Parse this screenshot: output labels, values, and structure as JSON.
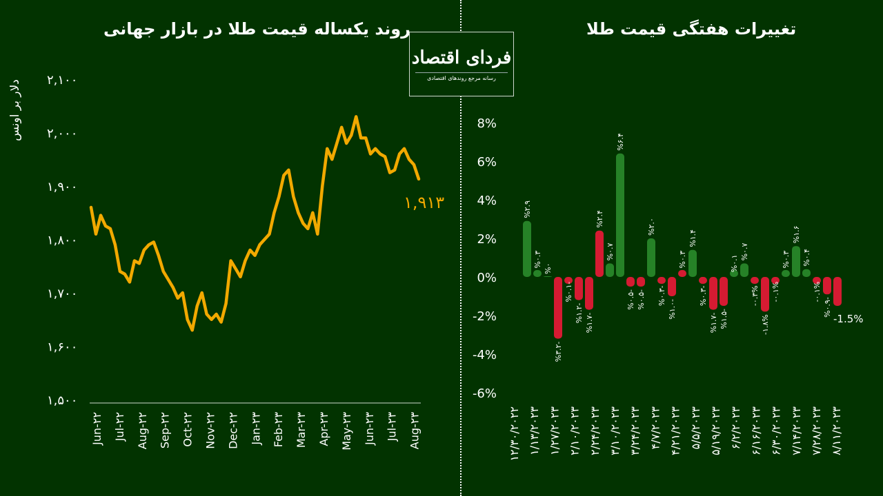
{
  "logo": {
    "name": "فردای اقتصاد",
    "tagline": "رسانه مرجع روندهای اقتصادی"
  },
  "colors": {
    "background": "#023300",
    "line": "#f2a900",
    "up": "#268227",
    "down": "#d51b32",
    "text": "#ffffff"
  },
  "chart_data": [
    {
      "type": "line",
      "title": "روند یکساله قیمت طلا در بازار جهانی",
      "ylabel": "دلار بر اونس",
      "ylim": [
        1500,
        2100
      ],
      "yticks": [
        2100,
        2000,
        1900,
        1800,
        1700,
        1600,
        1500
      ],
      "ytick_labels": [
        "۲,۱۰۰",
        "۲,۰۰۰",
        "۱,۹۰۰",
        "۱,۸۰۰",
        "۱,۷۰۰",
        "۱,۶۰۰",
        "۱,۵۰۰"
      ],
      "xtick_labels": [
        "Jun-۲۲",
        "Jul-۲۲",
        "Aug-۲۲",
        "Sep-۲۲",
        "Oct-۲۲",
        "Nov-۲۲",
        "Dec-۲۲",
        "Jan-۲۳",
        "Feb-۲۳",
        "Mar-۲۳",
        "Apr-۲۳",
        "May-۲۳",
        "Jun-۲۳",
        "Jul-۲۳",
        "Aug-۲۳"
      ],
      "values": [
        1860,
        1810,
        1845,
        1825,
        1820,
        1790,
        1740,
        1735,
        1720,
        1760,
        1755,
        1780,
        1790,
        1795,
        1770,
        1740,
        1725,
        1710,
        1690,
        1700,
        1650,
        1630,
        1675,
        1700,
        1660,
        1650,
        1660,
        1645,
        1680,
        1760,
        1745,
        1730,
        1760,
        1780,
        1770,
        1790,
        1800,
        1810,
        1850,
        1880,
        1920,
        1930,
        1880,
        1850,
        1830,
        1820,
        1850,
        1810,
        1900,
        1970,
        1950,
        1980,
        2010,
        1980,
        1995,
        2030,
        1990,
        1990,
        1960,
        1970,
        1960,
        1955,
        1925,
        1930,
        1960,
        1970,
        1950,
        1940,
        1913
      ],
      "last_label": "۱,۹۱۳"
    },
    {
      "type": "bar",
      "title": "تغییرات هفتگی قیمت طلا",
      "ylim": [
        -6,
        8
      ],
      "yticks": [
        8,
        6,
        4,
        2,
        0,
        -2,
        -4,
        -6
      ],
      "ytick_labels": [
        "8%",
        "6%",
        "4%",
        "2%",
        "0%",
        "-2%",
        "-4%",
        "-6%"
      ],
      "xtick_labels": [
        "۱۲/۳۰/۲۰۲۲",
        "۱/۱۳/۲۰۲۳",
        "۱/۲۷/۲۰۲۳",
        "۲/۱۰/۲۰۲۳",
        "۲/۲۴/۲۰۲۳",
        "۳/۱۰/۲۰۲۳",
        "۳/۲۴/۲۰۲۳",
        "۴/۷/۲۰۲۳",
        "۴/۲۱/۲۰۲۳",
        "۵/۵/۲۰۲۳",
        "۵/۱۹/۲۰۲۳",
        "۶/۲/۲۰۲۳",
        "۶/۱۶/۲۰۲۳",
        "۶/۳۰/۲۰۲۳",
        "۷/۱۴/۲۰۲۳",
        "۷/۲۸/۲۰۲۳",
        "۸/۱۱/۲۰۲۳"
      ],
      "values": [
        2.9,
        0.3,
        0,
        -3.2,
        -0.1,
        -1.2,
        -1.7,
        2.4,
        0.7,
        6.4,
        -0.5,
        -0.5,
        2.0,
        -0.3,
        -1.0,
        0.3,
        1.4,
        -0.3,
        -1.7,
        -1.5,
        0.1,
        0.7,
        -0.3,
        -1.8,
        -0.1,
        0.3,
        1.6,
        0.4,
        -0.1,
        -0.9,
        -1.5
      ],
      "bar_colors": [
        "up",
        "up",
        "up",
        "down",
        "down",
        "down",
        "down",
        "down",
        "up",
        "up",
        "down",
        "down",
        "up",
        "down",
        "down",
        "down",
        "up",
        "down",
        "down",
        "down",
        "up",
        "up",
        "down",
        "down",
        "down",
        "up",
        "up",
        "up",
        "down",
        "down",
        "down"
      ],
      "data_labels": [
        "%۲.۹",
        "%۰.۳",
        "%۰",
        "%۳.۲-",
        "%۰.۱-",
        "%۱.۲-",
        "%۱.۷-",
        "%۲.۴",
        "%۰.۷",
        "%۶.۴",
        "%۰.۵-",
        "%۰.۵-",
        "%۲.۰",
        "%۰.۳-",
        "%۱.۰-",
        "%۰.۳",
        "%۱.۴",
        "%۰.۳-",
        "%۱.۷-",
        "%۱.۵-",
        "%۰.۱",
        "%۰.۷",
        "-۰.۳%",
        "-۱.۸%",
        "-۰.۱%",
        "%۰.۳",
        "%۱.۶",
        "%۰.۴",
        "-۰.۱%",
        "%۰.۹-",
        "-1.5%"
      ]
    }
  ]
}
